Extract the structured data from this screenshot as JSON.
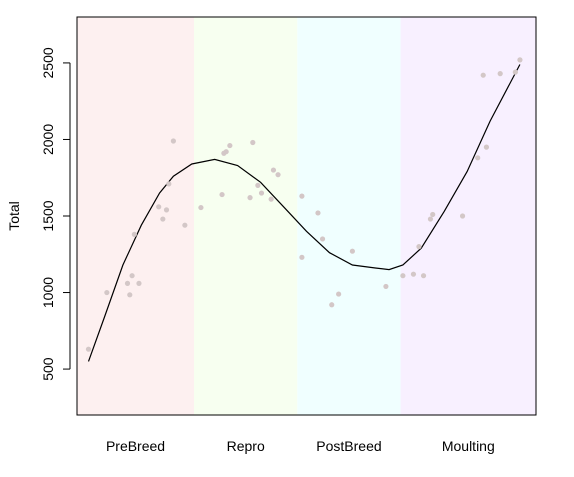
{
  "chart_data": {
    "type": "scatter",
    "title": "",
    "xlabel": "",
    "ylabel": "Total",
    "ylim": [
      200,
      2800
    ],
    "xlim": [
      0,
      100
    ],
    "y_ticks": [
      500,
      1000,
      1500,
      2000,
      2500
    ],
    "grid": false,
    "phases": [
      {
        "label": "PreBreed",
        "x_start": 0,
        "x_end": 25.5,
        "color": "#fdf0f0"
      },
      {
        "label": "Repro",
        "x_start": 25.5,
        "x_end": 48,
        "color": "#f7fff0"
      },
      {
        "label": "PostBreed",
        "x_start": 48,
        "x_end": 70.5,
        "color": "#f0ffff"
      },
      {
        "label": "Moulting",
        "x_start": 70.5,
        "x_end": 100,
        "color": "#f8f0ff"
      }
    ],
    "point_color": "#d3c7c7",
    "line_color": "#000000",
    "points": [
      {
        "x": 2.5,
        "y": 630
      },
      {
        "x": 6.5,
        "y": 1000
      },
      {
        "x": 11.0,
        "y": 1060
      },
      {
        "x": 11.5,
        "y": 985
      },
      {
        "x": 12.0,
        "y": 1110
      },
      {
        "x": 12.5,
        "y": 1380
      },
      {
        "x": 13.5,
        "y": 1060
      },
      {
        "x": 17.8,
        "y": 1560
      },
      {
        "x": 18.7,
        "y": 1480
      },
      {
        "x": 19.5,
        "y": 1540
      },
      {
        "x": 20.0,
        "y": 1710
      },
      {
        "x": 21.0,
        "y": 1990
      },
      {
        "x": 23.5,
        "y": 1440
      },
      {
        "x": 27.0,
        "y": 1555
      },
      {
        "x": 31.6,
        "y": 1640
      },
      {
        "x": 32.0,
        "y": 1910
      },
      {
        "x": 32.5,
        "y": 1920
      },
      {
        "x": 33.3,
        "y": 1960
      },
      {
        "x": 37.7,
        "y": 1620
      },
      {
        "x": 38.3,
        "y": 1980
      },
      {
        "x": 39.4,
        "y": 1700
      },
      {
        "x": 40.2,
        "y": 1650
      },
      {
        "x": 42.3,
        "y": 1610
      },
      {
        "x": 42.8,
        "y": 1800
      },
      {
        "x": 43.8,
        "y": 1770
      },
      {
        "x": 49.0,
        "y": 1630
      },
      {
        "x": 49.0,
        "y": 1230
      },
      {
        "x": 52.5,
        "y": 1520
      },
      {
        "x": 53.5,
        "y": 1350
      },
      {
        "x": 55.5,
        "y": 920
      },
      {
        "x": 57.0,
        "y": 990
      },
      {
        "x": 60.0,
        "y": 1270
      },
      {
        "x": 67.3,
        "y": 1040
      },
      {
        "x": 71.0,
        "y": 1110
      },
      {
        "x": 73.3,
        "y": 1120
      },
      {
        "x": 74.5,
        "y": 1300
      },
      {
        "x": 75.5,
        "y": 1110
      },
      {
        "x": 77.0,
        "y": 1480
      },
      {
        "x": 77.5,
        "y": 1510
      },
      {
        "x": 84.0,
        "y": 1500
      },
      {
        "x": 87.3,
        "y": 1880
      },
      {
        "x": 88.5,
        "y": 2420
      },
      {
        "x": 89.2,
        "y": 1950
      },
      {
        "x": 92.2,
        "y": 2430
      },
      {
        "x": 95.5,
        "y": 2440
      },
      {
        "x": 96.5,
        "y": 2520
      }
    ],
    "curve": [
      {
        "x": 2.5,
        "y": 550
      },
      {
        "x": 6,
        "y": 840
      },
      {
        "x": 10,
        "y": 1180
      },
      {
        "x": 14,
        "y": 1440
      },
      {
        "x": 18,
        "y": 1650
      },
      {
        "x": 21,
        "y": 1760
      },
      {
        "x": 25,
        "y": 1840
      },
      {
        "x": 30,
        "y": 1870
      },
      {
        "x": 35,
        "y": 1830
      },
      {
        "x": 40,
        "y": 1720
      },
      {
        "x": 45,
        "y": 1560
      },
      {
        "x": 50,
        "y": 1400
      },
      {
        "x": 55,
        "y": 1260
      },
      {
        "x": 60,
        "y": 1180
      },
      {
        "x": 65,
        "y": 1160
      },
      {
        "x": 68,
        "y": 1150
      },
      {
        "x": 71,
        "y": 1180
      },
      {
        "x": 75,
        "y": 1290
      },
      {
        "x": 80,
        "y": 1530
      },
      {
        "x": 85,
        "y": 1790
      },
      {
        "x": 90,
        "y": 2120
      },
      {
        "x": 96.5,
        "y": 2490
      }
    ]
  }
}
